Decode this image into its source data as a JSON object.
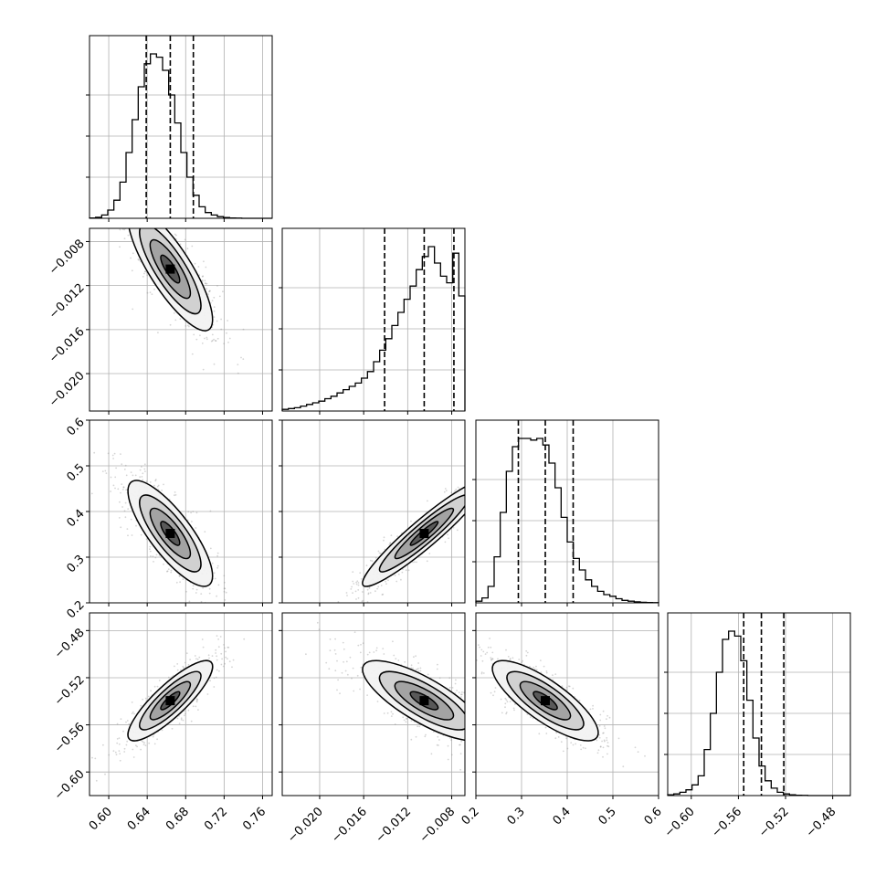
{
  "chart_data": {
    "type": "corner",
    "title": "",
    "grid": true,
    "parameters": [
      {
        "range": [
          0.58,
          0.77
        ],
        "ticks": [
          0.6,
          0.64,
          0.68,
          0.72,
          0.76
        ],
        "tick_labels": [
          "0.60",
          "0.64",
          "0.68",
          "0.72",
          "0.76"
        ],
        "quantiles": [
          0.639,
          0.664,
          0.688
        ],
        "mean": 0.664,
        "sd": 0.022
      },
      {
        "range": [
          -0.0234,
          -0.0068
        ],
        "ticks": [
          -0.02,
          -0.016,
          -0.012,
          -0.008
        ],
        "tick_labels": [
          "−0.020",
          "−0.016",
          "−0.012",
          "−0.008"
        ],
        "quantiles": [
          -0.0141,
          -0.0105,
          -0.0078
        ],
        "mean": -0.0105,
        "sd": 0.0028
      },
      {
        "range": [
          0.2,
          0.6
        ],
        "ticks": [
          0.2,
          0.3,
          0.4,
          0.5,
          0.6
        ],
        "tick_labels": [
          "0.2",
          "0.3",
          "0.4",
          "0.5",
          "0.6"
        ],
        "quantiles": [
          0.293,
          0.352,
          0.413
        ],
        "mean": 0.352,
        "sd": 0.058
      },
      {
        "range": [
          -0.62,
          -0.465
        ],
        "ticks": [
          -0.6,
          -0.56,
          -0.52,
          -0.48
        ],
        "tick_labels": [
          "−0.60",
          "−0.56",
          "−0.52",
          "−0.48"
        ],
        "quantiles": [
          -0.5555,
          -0.5405,
          -0.5215
        ],
        "mean": -0.5395,
        "sd": 0.017
      }
    ],
    "correlations": [
      {
        "row": 1,
        "col": 0,
        "rho": -0.82
      },
      {
        "row": 2,
        "col": 0,
        "rho": -0.8
      },
      {
        "row": 2,
        "col": 1,
        "rho": 0.94
      },
      {
        "row": 3,
        "col": 0,
        "rho": 0.85
      },
      {
        "row": 3,
        "col": 1,
        "rho": -0.78
      },
      {
        "row": 3,
        "col": 2,
        "rho": -0.8
      }
    ],
    "histograms": [
      {
        "bins": 30,
        "values": [
          0.2,
          0.6,
          2.0,
          5.0,
          11.0,
          22.0,
          40.0,
          60.0,
          80.0,
          94.0,
          100.0,
          98.0,
          90.0,
          75.0,
          58.0,
          40.0,
          25.0,
          14.0,
          7.0,
          3.5,
          2.0,
          1.0,
          0.5,
          0.2,
          0.1,
          0.0,
          0.0,
          0.0,
          0.0,
          0.0
        ]
      },
      {
        "bins": 30,
        "values": [
          1.0,
          1.5,
          2.0,
          3.0,
          4.0,
          5.0,
          6.0,
          7.5,
          9.0,
          11.0,
          13.0,
          15.0,
          17.0,
          20.0,
          24.0,
          30.0,
          37.0,
          44.0,
          52.0,
          60.0,
          68.0,
          76.0,
          86.0,
          94.0,
          100.0,
          90.0,
          82.0,
          78.0,
          96.0,
          70.0
        ]
      },
      {
        "bins": 30,
        "values": [
          1.0,
          3.0,
          10.0,
          28.0,
          55.0,
          80.0,
          95.0,
          100.0,
          100.0,
          99.0,
          100.0,
          96.0,
          85.0,
          70.0,
          52.0,
          37.0,
          27.0,
          20.0,
          14.0,
          10.0,
          7.0,
          5.0,
          4.0,
          2.5,
          1.5,
          1.0,
          0.6,
          0.3,
          0.2,
          0.1
        ]
      },
      {
        "bins": 30,
        "values": [
          0.5,
          1.0,
          2.0,
          3.5,
          6.5,
          12.0,
          28.0,
          50.0,
          75.0,
          95.0,
          100.0,
          97.0,
          82.0,
          58.0,
          35.0,
          18.0,
          9.0,
          4.5,
          2.0,
          1.0,
          0.5,
          0.2,
          0.1,
          0.0,
          0.0,
          0.0,
          0.0,
          0.0,
          0.0,
          0.0
        ]
      }
    ]
  }
}
